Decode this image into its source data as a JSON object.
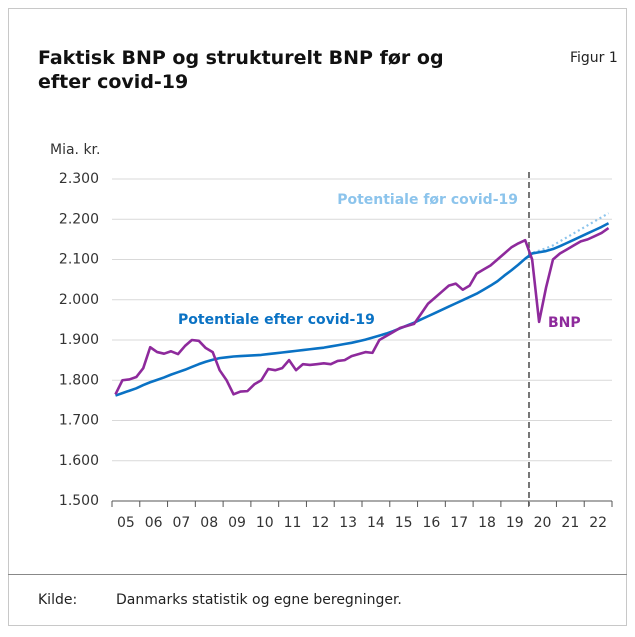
{
  "chart_data": {
    "type": "line",
    "title": "Faktisk BNP og strukturelt BNP før og efter covid-19",
    "figure_label": "Figur 1",
    "y_label": "Mia. kr.",
    "source": {
      "label": "Kilde:",
      "text": "Danmarks statistik og egne beregninger."
    },
    "categories": [
      "05",
      null,
      null,
      null,
      "06",
      null,
      null,
      null,
      "07",
      null,
      null,
      null,
      "08",
      null,
      null,
      null,
      "09",
      null,
      null,
      null,
      "10",
      null,
      null,
      null,
      "11",
      null,
      null,
      null,
      "12",
      null,
      null,
      null,
      "13",
      null,
      null,
      null,
      "14",
      null,
      null,
      null,
      "15",
      null,
      null,
      null,
      "16",
      null,
      null,
      null,
      "17",
      null,
      null,
      null,
      "18",
      null,
      null,
      null,
      "19",
      null,
      null,
      null,
      "20",
      null,
      null,
      null,
      "21",
      null,
      null,
      null,
      "22",
      null,
      null,
      null
    ],
    "ylim": [
      1500,
      2300
    ],
    "yticks": [
      {
        "value": 1500,
        "label": "1.500"
      },
      {
        "value": 1600,
        "label": "1.600"
      },
      {
        "value": 1700,
        "label": "1.700"
      },
      {
        "value": 1800,
        "label": "1.800"
      },
      {
        "value": 1900,
        "label": "1.900"
      },
      {
        "value": 2000,
        "label": "2.000"
      },
      {
        "value": 2100,
        "label": "2.100"
      },
      {
        "value": 2200,
        "label": "2.200"
      },
      {
        "value": 2300,
        "label": "2.300"
      }
    ],
    "grid": true,
    "series": [
      {
        "name": "BNP",
        "color": "#8e2a9c",
        "style": "solid",
        "values": [
          1765,
          1800,
          1802,
          1808,
          1830,
          1882,
          1870,
          1866,
          1872,
          1865,
          1885,
          1900,
          1898,
          1880,
          1870,
          1825,
          1800,
          1765,
          1772,
          1773,
          1790,
          1800,
          1828,
          1825,
          1830,
          1850,
          1825,
          1840,
          1838,
          1840,
          1842,
          1840,
          1848,
          1850,
          1860,
          1865,
          1870,
          1868,
          1900,
          1910,
          1920,
          1930,
          1935,
          1940,
          1965,
          1990,
          2005,
          2020,
          2035,
          2040,
          2025,
          2035,
          2065,
          2075,
          2085,
          2100,
          2115,
          2130,
          2140,
          2148,
          2100,
          1945,
          2030,
          2100,
          2115,
          2125,
          2135,
          2145,
          2150,
          2158,
          2166,
          2178
        ]
      },
      {
        "name": "Potentiale efter covid-19",
        "color": "#0a72c4",
        "style": "solid",
        "values": [
          1762,
          1768,
          1774,
          1780,
          1788,
          1795,
          1801,
          1807,
          1814,
          1820,
          1826,
          1833,
          1840,
          1846,
          1851,
          1855,
          1857,
          1859,
          1860,
          1861,
          1862,
          1863,
          1865,
          1867,
          1869,
          1871,
          1873,
          1875,
          1877,
          1879,
          1881,
          1884,
          1887,
          1890,
          1893,
          1897,
          1901,
          1906,
          1911,
          1916,
          1922,
          1929,
          1936,
          1943,
          1951,
          1959,
          1967,
          1975,
          1983,
          1991,
          1999,
          2007,
          2015,
          2025,
          2035,
          2046,
          2060,
          2073,
          2087,
          2102,
          2115,
          2118,
          2121,
          2126,
          2133,
          2141,
          2149,
          2157,
          2165,
          2173,
          2181,
          2190
        ]
      },
      {
        "name": "Potentiale før covid-19",
        "color": "#8cc4ec",
        "style": "dotted",
        "values": [
          null,
          null,
          null,
          null,
          null,
          null,
          null,
          null,
          null,
          null,
          null,
          null,
          null,
          null,
          null,
          null,
          null,
          null,
          null,
          null,
          null,
          null,
          null,
          null,
          null,
          null,
          null,
          null,
          null,
          null,
          null,
          null,
          null,
          null,
          null,
          null,
          null,
          null,
          null,
          null,
          null,
          null,
          null,
          null,
          null,
          null,
          null,
          null,
          null,
          null,
          null,
          null,
          null,
          null,
          null,
          null,
          null,
          null,
          null,
          2102,
          2116,
          2122,
          2128,
          2135,
          2145,
          2155,
          2165,
          2175,
          2185,
          2195,
          2205,
          2215
        ]
      }
    ]
  }
}
